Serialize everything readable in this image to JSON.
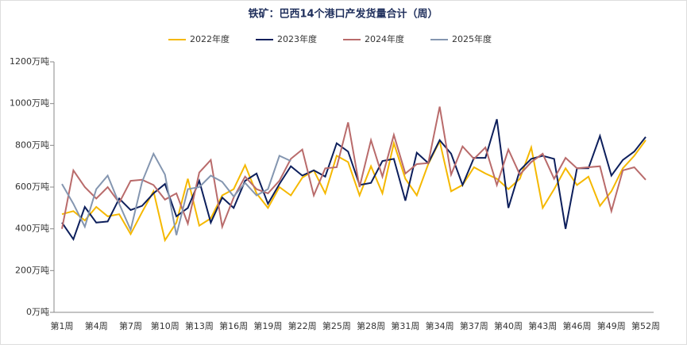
{
  "chart_data": {
    "type": "line",
    "title": "铁矿：巴西14个港口产发货量合计（周）",
    "categories": [
      "第1周",
      null,
      null,
      "第4周",
      null,
      null,
      "第7周",
      null,
      null,
      "第10周",
      null,
      null,
      "第13周",
      null,
      null,
      "第16周",
      null,
      null,
      "第19周",
      null,
      null,
      "第22周",
      null,
      null,
      "第25周",
      null,
      null,
      "第28周",
      null,
      null,
      "第31周",
      null,
      null,
      "第34周",
      null,
      null,
      "第37周",
      null,
      null,
      "第40周",
      null,
      null,
      "第43周",
      null,
      null,
      "第46周",
      null,
      null,
      "第49周",
      null,
      null,
      "第52周"
    ],
    "series": [
      {
        "name": "2022年度",
        "color": "#f5b800",
        "values": [
          470,
          485,
          440,
          505,
          460,
          470,
          375,
          480,
          580,
          345,
          430,
          640,
          415,
          450,
          560,
          590,
          705,
          570,
          500,
          600,
          560,
          645,
          680,
          570,
          750,
          720,
          560,
          700,
          570,
          810,
          640,
          560,
          710,
          820,
          580,
          610,
          695,
          665,
          640,
          590,
          640,
          790,
          500,
          590,
          690,
          610,
          650,
          510,
          580,
          690,
          750,
          825
        ]
      },
      {
        "name": "2023年度",
        "color": "#0d1f5c",
        "values": [
          430,
          350,
          505,
          430,
          435,
          545,
          490,
          510,
          570,
          615,
          460,
          500,
          630,
          430,
          550,
          500,
          630,
          665,
          520,
          615,
          700,
          655,
          680,
          650,
          810,
          770,
          610,
          620,
          725,
          735,
          535,
          765,
          715,
          825,
          760,
          610,
          740,
          740,
          925,
          500,
          680,
          735,
          750,
          735,
          400,
          690,
          690,
          845,
          655,
          730,
          770,
          840
        ]
      },
      {
        "name": "2024年度",
        "color": "#b96b6b",
        "values": [
          400,
          680,
          600,
          545,
          600,
          525,
          630,
          635,
          610,
          540,
          570,
          425,
          670,
          730,
          410,
          550,
          650,
          590,
          570,
          630,
          735,
          780,
          560,
          690,
          695,
          910,
          600,
          825,
          650,
          850,
          665,
          710,
          715,
          985,
          660,
          795,
          735,
          790,
          610,
          780,
          660,
          720,
          760,
          640,
          740,
          690,
          695,
          700,
          485,
          680,
          695,
          635
        ]
      },
      {
        "name": "2025年度",
        "color": "#8496b0",
        "values": [
          615,
          520,
          410,
          590,
          655,
          520,
          395,
          625,
          760,
          660,
          370,
          590,
          600,
          655,
          625,
          555,
          620,
          560,
          590,
          750,
          725,
          null,
          null,
          null,
          null,
          null,
          null,
          null,
          null,
          null,
          null,
          null,
          null,
          null,
          null,
          null,
          null,
          null,
          null,
          null,
          null,
          null,
          null,
          null,
          null,
          null,
          null,
          null,
          null,
          null,
          null,
          null
        ]
      }
    ],
    "ylim": [
      0,
      1200
    ],
    "yticks": [
      {
        "value": 0,
        "label": "0万吨"
      },
      {
        "value": 200,
        "label": "200万吨"
      },
      {
        "value": 400,
        "label": "400万吨"
      },
      {
        "value": 600,
        "label": "600万吨"
      },
      {
        "value": 800,
        "label": "800万吨"
      },
      {
        "value": 1000,
        "label": "1000万吨"
      },
      {
        "value": 1200,
        "label": "1200万吨"
      }
    ],
    "legend": "top"
  }
}
